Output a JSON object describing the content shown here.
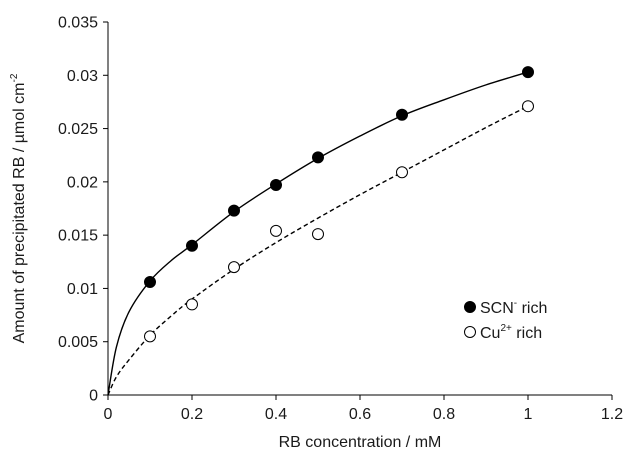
{
  "chart_data": {
    "type": "scatter",
    "xlabel": "RB concentration / mM",
    "ylabel": {
      "base": "Amount of precipitated RB / µmol cm",
      "sup": "-2"
    },
    "xlim": [
      0,
      1.2
    ],
    "ylim": [
      0,
      0.035
    ],
    "x_ticks": [
      "0",
      "0.2",
      "0.4",
      "0.6",
      "0.8",
      "1",
      "1.2"
    ],
    "y_ticks": [
      "0",
      "0.005",
      "0.01",
      "0.015",
      "0.02",
      "0.025",
      "0.03",
      "0.035"
    ],
    "grid": false,
    "legend_position": "bottom-right",
    "series": [
      {
        "name": "SCN- rich",
        "legend": {
          "base": "SCN",
          "sup": "-",
          "rest": " rich"
        },
        "marker": "filled-circle",
        "line": "solid",
        "x": [
          0.1,
          0.2,
          0.3,
          0.4,
          0.5,
          0.7,
          1.0
        ],
        "y": [
          0.0106,
          0.014,
          0.0173,
          0.0197,
          0.0223,
          0.0263,
          0.0303
        ],
        "fit_curve": {
          "x": [
            0,
            0.02,
            0.05,
            0.1,
            0.15,
            0.2,
            0.3,
            0.4,
            0.5,
            0.6,
            0.7,
            0.8,
            0.9,
            1.0
          ],
          "y": [
            0,
            0.0045,
            0.0078,
            0.0107,
            0.0126,
            0.0141,
            0.0172,
            0.0198,
            0.0222,
            0.0243,
            0.0262,
            0.0277,
            0.0291,
            0.0303
          ]
        }
      },
      {
        "name": "Cu2+ rich",
        "legend": {
          "base": "Cu",
          "sup": "2+",
          "rest": " rich"
        },
        "marker": "open-circle",
        "line": "dashed",
        "x": [
          0.1,
          0.2,
          0.3,
          0.4,
          0.5,
          0.7,
          1.0
        ],
        "y": [
          0.0055,
          0.0085,
          0.012,
          0.0154,
          0.0151,
          0.0209,
          0.0271
        ],
        "fit_curve": {
          "x": [
            0,
            0.02,
            0.05,
            0.1,
            0.15,
            0.2,
            0.3,
            0.4,
            0.5,
            0.6,
            0.7,
            0.8,
            0.9,
            1.0
          ],
          "y": [
            0,
            0.0017,
            0.0033,
            0.0056,
            0.0074,
            0.009,
            0.0118,
            0.0143,
            0.0166,
            0.0188,
            0.0209,
            0.023,
            0.0251,
            0.0271
          ]
        }
      }
    ]
  }
}
